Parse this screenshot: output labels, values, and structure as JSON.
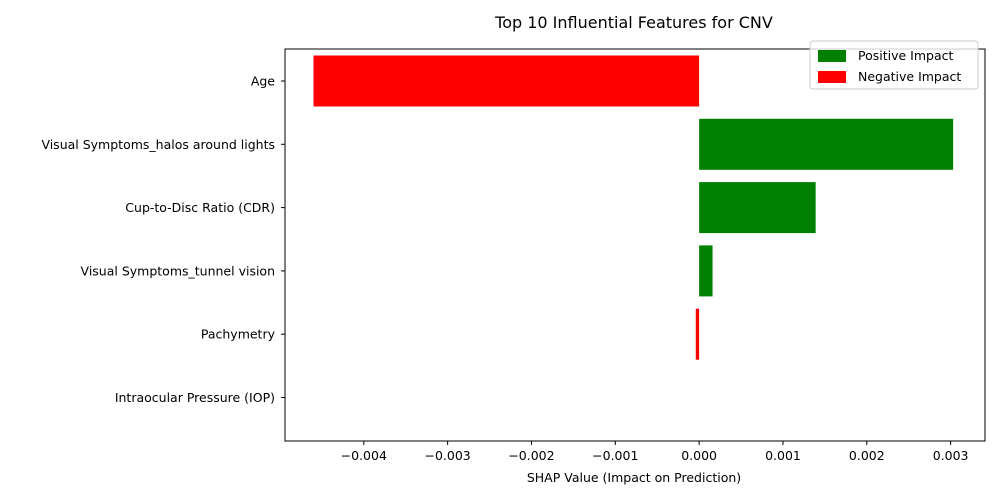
{
  "chart_data": {
    "type": "bar",
    "orientation": "horizontal",
    "title": "Top 10 Influential Features for CNV",
    "xlabel": "SHAP Value (Impact on Prediction)",
    "ylabel": "",
    "xlim": [
      -0.00494,
      0.00341
    ],
    "xticks": [
      -0.004,
      -0.003,
      -0.002,
      -0.001,
      0.0,
      0.001,
      0.002,
      0.003
    ],
    "xtick_labels": [
      "−0.004",
      "−0.003",
      "−0.002",
      "−0.001",
      "0.000",
      "0.001",
      "0.002",
      "0.003"
    ],
    "categories": [
      "Age",
      "Visual Symptoms_halos around lights",
      "Cup-to-Disc Ratio (CDR)",
      "Visual Symptoms_tunnel vision",
      "Pachymetry",
      "Intraocular Pressure (IOP)"
    ],
    "values": [
      -0.0046,
      0.00303,
      0.00139,
      0.00016,
      -4e-05,
      0.0
    ],
    "colors": {
      "positive": "#008000",
      "negative": "#ff0000"
    },
    "legend": {
      "position": "top-right",
      "entries": [
        {
          "label": "Positive Impact",
          "color": "#008000"
        },
        {
          "label": "Negative Impact",
          "color": "#ff0000"
        }
      ]
    },
    "grid": false
  }
}
